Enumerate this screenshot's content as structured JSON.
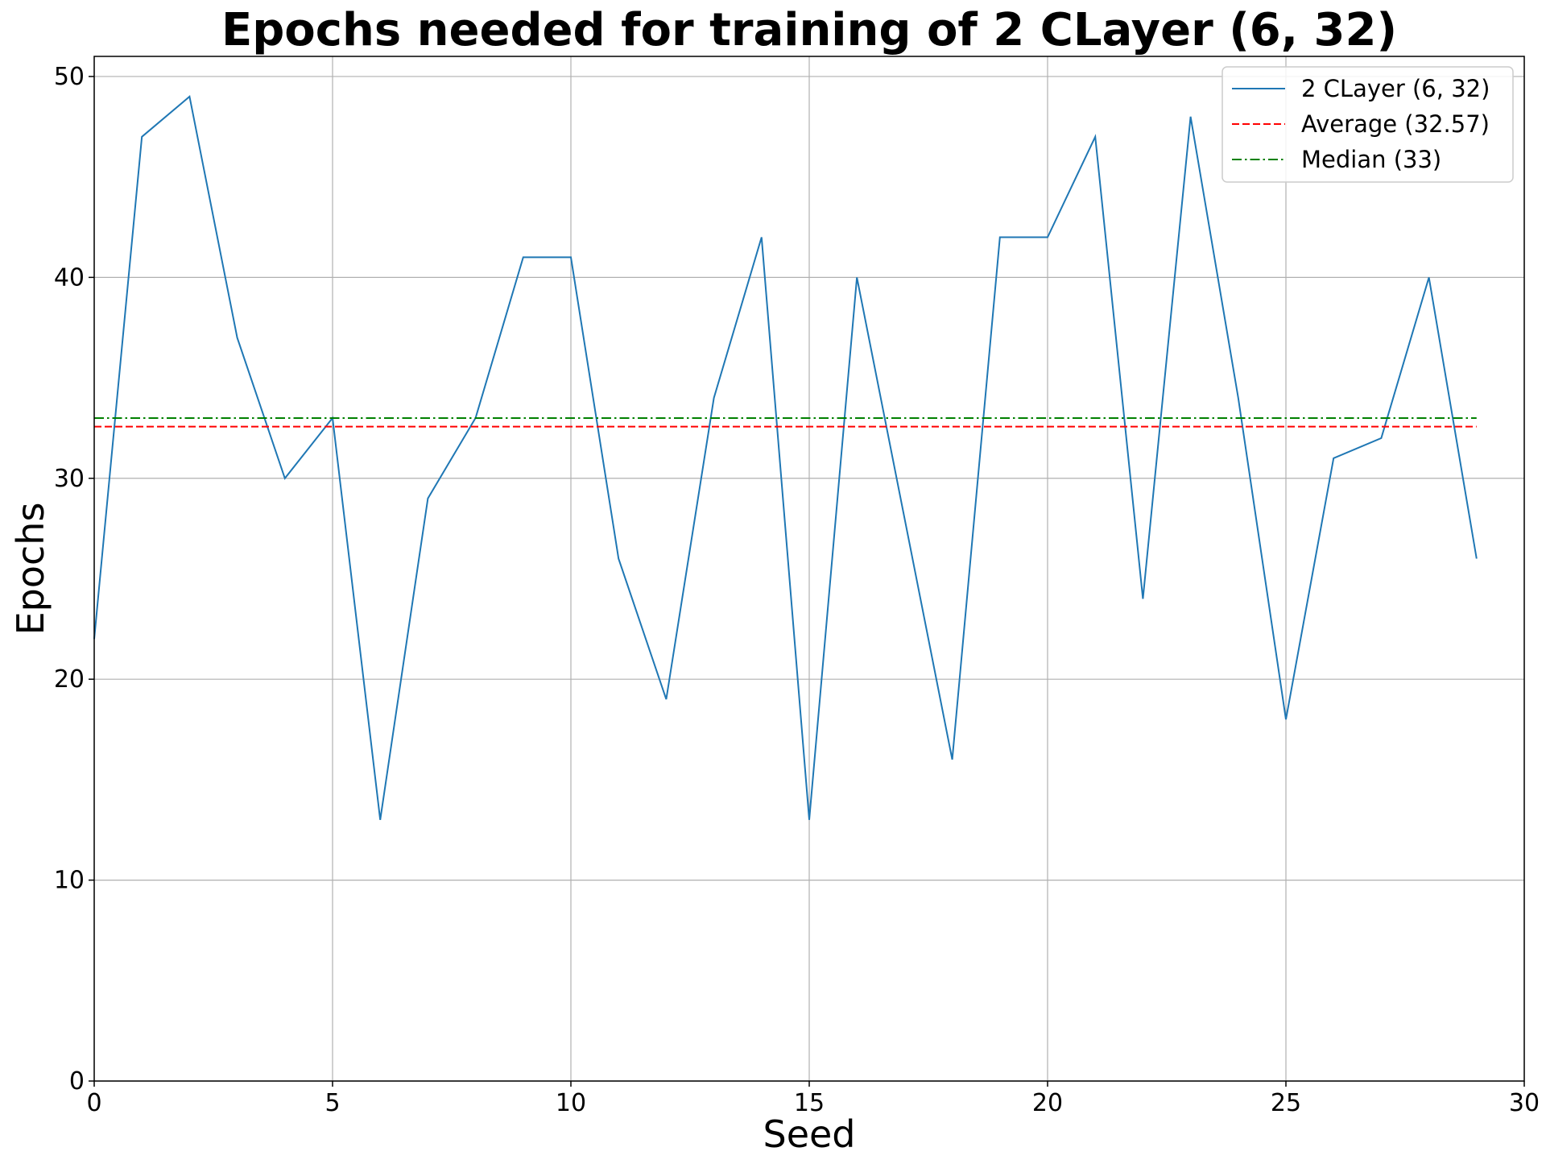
{
  "chart_data": {
    "type": "line",
    "title": "Epochs needed for training of 2 CLayer (6, 32)",
    "xlabel": "Seed",
    "ylabel": "Epochs",
    "xlim": [
      0,
      30
    ],
    "ylim": [
      0,
      51
    ],
    "xticks": [
      0,
      5,
      10,
      15,
      20,
      25,
      30
    ],
    "yticks": [
      0,
      10,
      20,
      30,
      40,
      50
    ],
    "grid": true,
    "legend_position": "top-right",
    "x": [
      0,
      1,
      2,
      3,
      4,
      5,
      6,
      7,
      8,
      9,
      10,
      11,
      12,
      13,
      14,
      15,
      16,
      17,
      18,
      19,
      20,
      21,
      22,
      23,
      24,
      25,
      26,
      27,
      28,
      29
    ],
    "series": [
      {
        "name": "2 CLayer (6, 32)",
        "style": "solid",
        "color": "#1f77b4",
        "values": [
          22,
          47,
          49,
          37,
          30,
          33,
          13,
          29,
          33,
          41,
          41,
          26,
          19,
          34,
          42,
          13,
          40,
          28,
          16,
          42,
          42,
          47,
          24,
          48,
          34,
          18,
          31,
          32,
          40,
          26
        ]
      },
      {
        "name": "Average (32.57)",
        "style": "dashed",
        "color": "#ff0000",
        "constant": 32.57,
        "x_range": [
          0,
          29
        ]
      },
      {
        "name": "Median (33)",
        "style": "dashdot",
        "color": "#008000",
        "constant": 33,
        "x_range": [
          0,
          29
        ]
      }
    ]
  }
}
